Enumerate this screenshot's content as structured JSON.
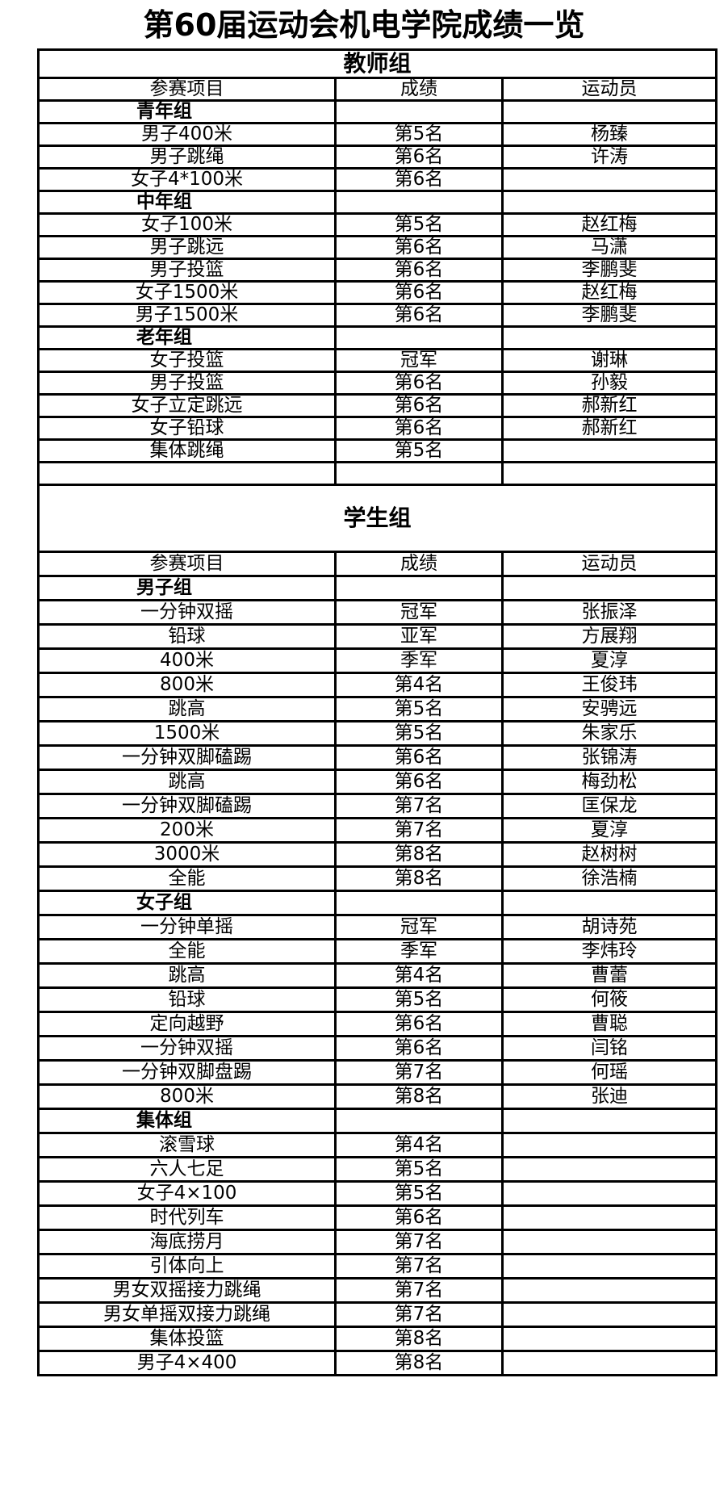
{
  "title": "第60届运动会机电学院成绩一览",
  "columns": [
    "参赛项目",
    "成绩",
    "运动员"
  ],
  "teacher": {
    "label": "教师组",
    "groups": [
      {
        "name": "青年组",
        "rows": [
          [
            "男子400米",
            "第5名",
            "杨臻"
          ],
          [
            "男子跳绳",
            "第6名",
            "许涛"
          ],
          [
            "女子4*100米",
            "第6名",
            ""
          ]
        ]
      },
      {
        "name": "中年组",
        "rows": [
          [
            "女子100米",
            "第5名",
            "赵红梅"
          ],
          [
            "男子跳远",
            "第6名",
            "马潇"
          ],
          [
            "男子投篮",
            "第6名",
            "李鹏斐"
          ],
          [
            "女子1500米",
            "第6名",
            "赵红梅"
          ],
          [
            "男子1500米",
            "第6名",
            "李鹏斐"
          ]
        ]
      },
      {
        "name": "老年组",
        "rows": [
          [
            "女子投篮",
            "冠军",
            "谢琳"
          ],
          [
            "男子投篮",
            "第6名",
            "孙毅"
          ],
          [
            "女子立定跳远",
            "第6名",
            "郝新红"
          ],
          [
            "女子铅球",
            "第6名",
            "郝新红"
          ],
          [
            "集体跳绳",
            "第5名",
            ""
          ]
        ]
      }
    ]
  },
  "student": {
    "label": "学生组",
    "groups": [
      {
        "name": "男子组",
        "rows": [
          [
            "一分钟双摇",
            "冠军",
            "张振泽"
          ],
          [
            "铅球",
            "亚军",
            "方展翔"
          ],
          [
            "400米",
            "季军",
            "夏淳"
          ],
          [
            "800米",
            "第4名",
            "王俊玮"
          ],
          [
            "跳高",
            "第5名",
            "安骋远"
          ],
          [
            "1500米",
            "第5名",
            "朱家乐"
          ],
          [
            "一分钟双脚磕踢",
            "第6名",
            "张锦涛"
          ],
          [
            "跳高",
            "第6名",
            "梅劲松"
          ],
          [
            "一分钟双脚磕踢",
            "第7名",
            "匡保龙"
          ],
          [
            "200米",
            "第7名",
            "夏淳"
          ],
          [
            "3000米",
            "第8名",
            "赵树树"
          ],
          [
            "全能",
            "第8名",
            "徐浩楠"
          ]
        ]
      },
      {
        "name": "女子组",
        "rows": [
          [
            "一分钟单摇",
            "冠军",
            "胡诗苑"
          ],
          [
            "全能",
            "季军",
            "李炜玲"
          ],
          [
            "跳高",
            "第4名",
            "曹蕾"
          ],
          [
            "铅球",
            "第5名",
            "何筱"
          ],
          [
            "定向越野",
            "第6名",
            "曹聪"
          ],
          [
            "一分钟双摇",
            "第6名",
            "闫铭"
          ],
          [
            "一分钟双脚盘踢",
            "第7名",
            "何瑶"
          ],
          [
            "800米",
            "第8名",
            "张迪"
          ]
        ]
      },
      {
        "name": "集体组",
        "rows": [
          [
            "滚雪球",
            "第4名",
            ""
          ],
          [
            "六人七足",
            "第5名",
            ""
          ],
          [
            "女子4×100",
            "第5名",
            ""
          ],
          [
            "时代列车",
            "第6名",
            ""
          ],
          [
            "海底捞月",
            "第7名",
            ""
          ],
          [
            "引体向上",
            "第7名",
            ""
          ],
          [
            "男女双摇接力跳绳",
            "第7名",
            ""
          ],
          [
            "男女单摇双接力跳绳",
            "第7名",
            ""
          ],
          [
            "集体投篮",
            "第8名",
            ""
          ],
          [
            "男子4×400",
            "第8名",
            ""
          ]
        ]
      }
    ]
  }
}
